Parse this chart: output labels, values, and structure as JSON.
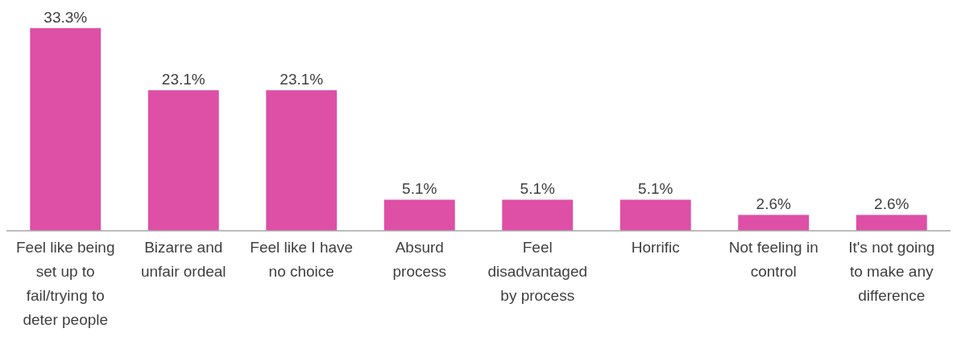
{
  "chart_data": {
    "type": "bar",
    "categories": [
      "Feel like being set up to fail/trying to deter people",
      "Bizarre and unfair ordeal",
      "Feel like I have no choice",
      "Absurd process",
      "Feel disadvantaged by process",
      "Horrific",
      "Not feeling in control",
      "It's not going to make any difference"
    ],
    "values": [
      33.3,
      23.1,
      23.1,
      5.1,
      5.1,
      5.1,
      2.6,
      2.6
    ],
    "value_labels": [
      "33.3%",
      "23.1%",
      "23.1%",
      "5.1%",
      "5.1%",
      "5.1%",
      "2.6%",
      "2.6%"
    ],
    "color": "#de4fa6"
  }
}
